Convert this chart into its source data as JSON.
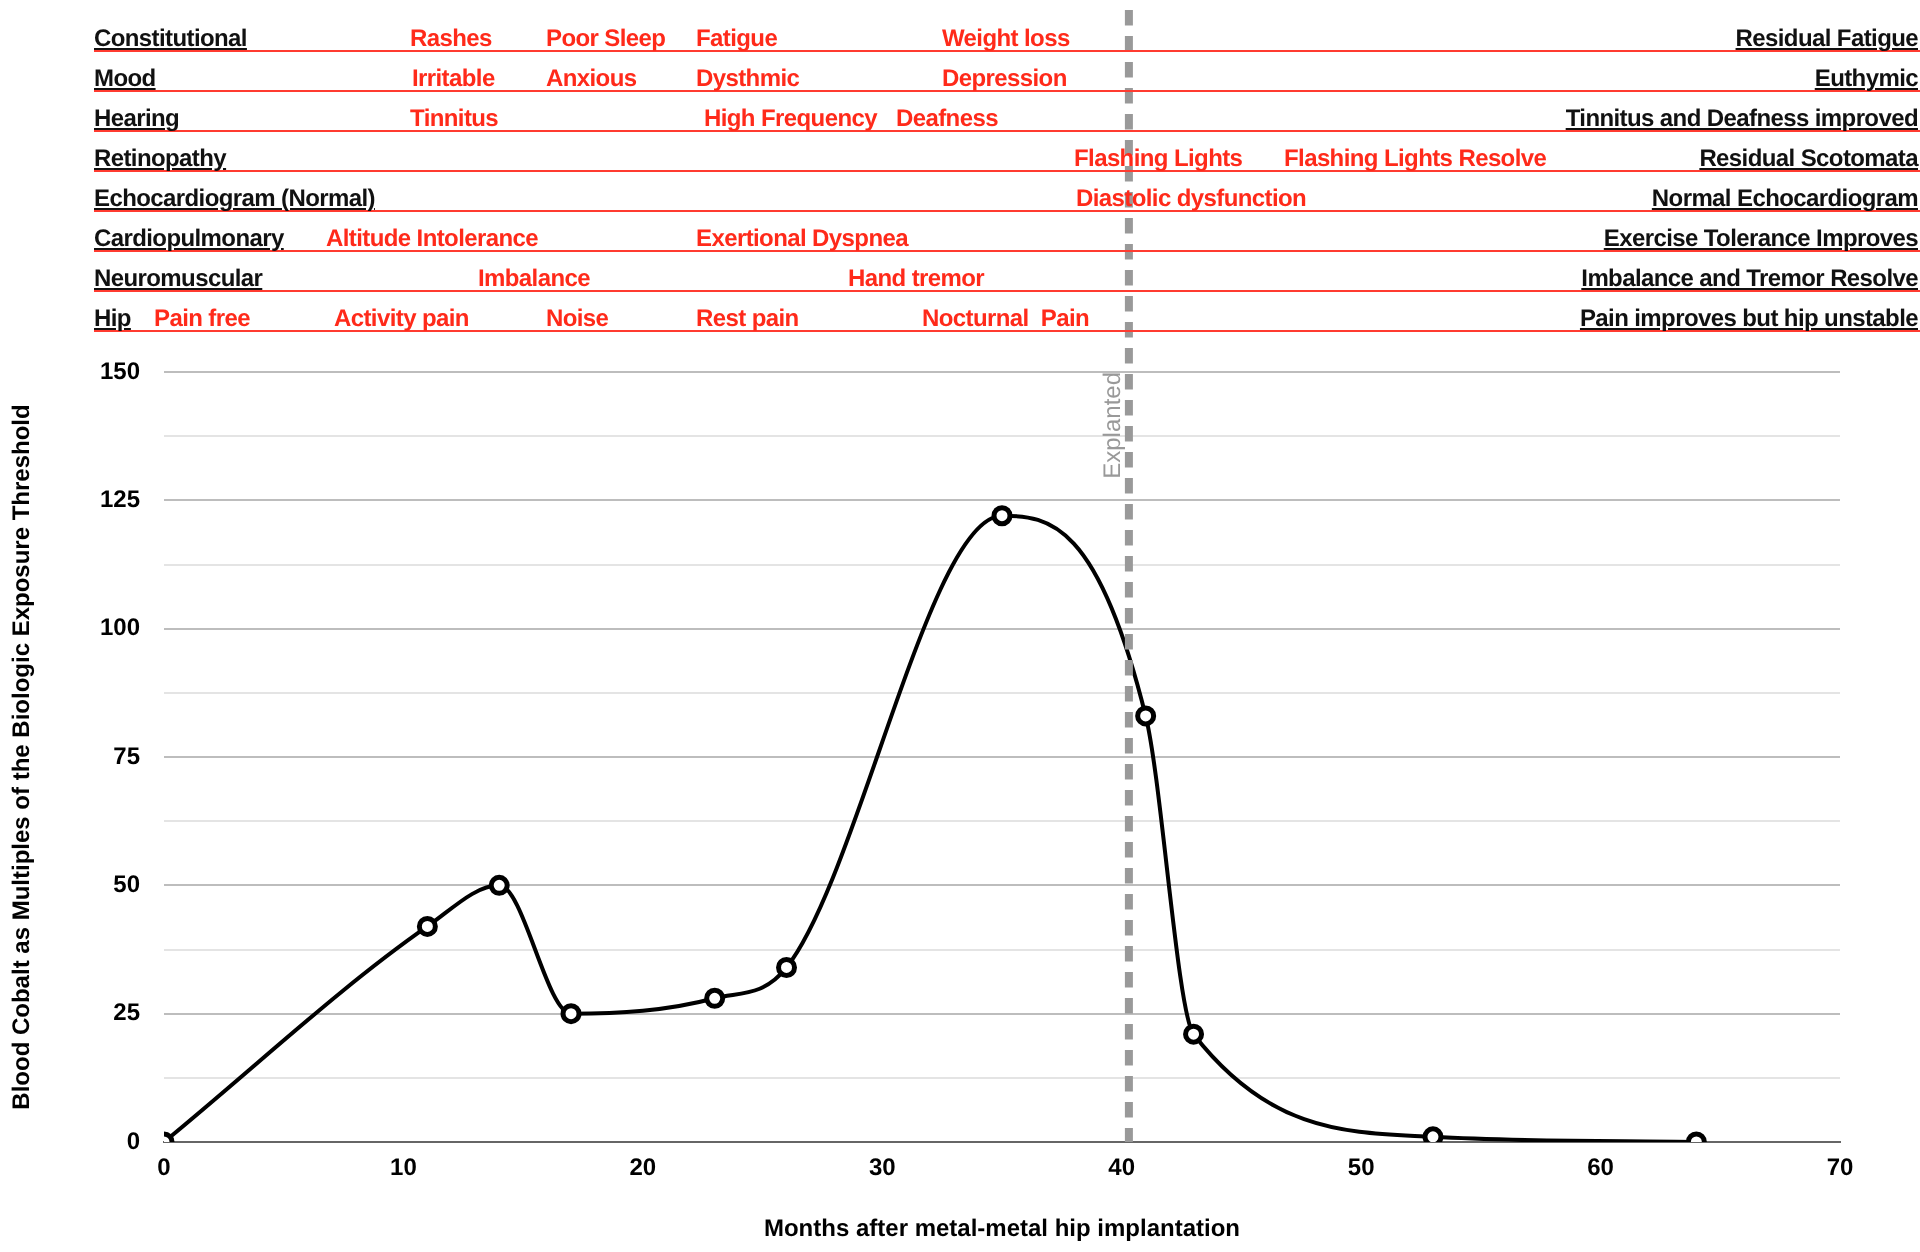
{
  "chart_data": {
    "type": "line",
    "xlabel": "Months after metal-metal hip implantation",
    "ylabel": "Blood Cobalt as Multiples of the Biologic Exposure Threshold",
    "x": [
      0,
      11,
      14,
      17,
      23,
      26,
      35,
      41,
      43,
      53,
      64
    ],
    "series": [
      {
        "color": "#000000",
        "values": [
          0,
          42,
          50,
          25,
          28,
          34,
          122,
          83,
          21,
          1,
          0
        ]
      }
    ],
    "xlim": [
      0,
      70
    ],
    "xticks": [
      0,
      10,
      20,
      30,
      40,
      50,
      60,
      70
    ],
    "ylim": [
      0,
      150
    ],
    "yticks": [
      0,
      {
        "value": 12.5,
        "label": null
      },
      25,
      {
        "value": 37.5,
        "label": null
      },
      50,
      {
        "value": 62.5,
        "label": null
      },
      75,
      {
        "value": 87.5,
        "label": null
      },
      100,
      {
        "value": 112.5,
        "label": null
      },
      125,
      {
        "value": 137.5,
        "label": null
      },
      150
    ],
    "grid": "y",
    "marker": "circle",
    "line_style": "solid",
    "ref_lines": [
      {
        "axis": "x",
        "value": 40.3,
        "label": "Explanted",
        "color": "#999999",
        "line_style": "dashed"
      }
    ],
    "annotations": [
      "Constitutional",
      "Rashes",
      "Poor Sleep",
      "Fatigue",
      "Weight loss",
      "Residual Fatigue",
      "Mood",
      "Irritable",
      "Anxious",
      "Dysthmic",
      "Depression",
      "Euthymic",
      "Hearing",
      "Tinnitus",
      "High Frequency",
      "Deafness",
      "Tinnitus and Deafness improved",
      "Retinopathy",
      "Flashing Lights",
      "Flashing Lights Resolve",
      "Residual Scotomata",
      "Echocardiogram (Normal)",
      "Diastolic dysfunction",
      "Normal Echocardiogram",
      "Cardiopulmonary",
      "Altitude Intolerance",
      "Exertional Dyspnea",
      "Exercise Tolerance Improves",
      "Neuromuscular",
      "Imbalance",
      "Hand tremor",
      "Imbalance and Tremor Resolve",
      "Hip",
      "Pain free",
      "Activity pain",
      "Noise",
      "Rest pain",
      "Nocturnal  Pain",
      "Pain improves but hip unstable"
    ]
  }
}
